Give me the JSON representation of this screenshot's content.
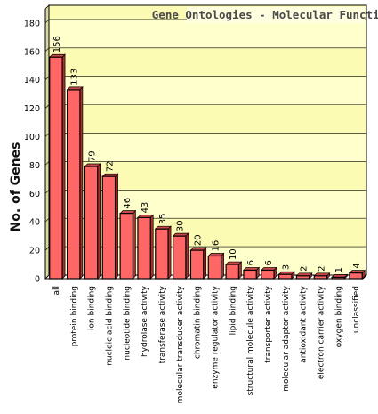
{
  "chart_data": {
    "type": "bar",
    "title": "Gene Ontologies - Molecular Functions",
    "ylabel": "No. of Genes",
    "xlabel": "",
    "ylim": [
      0,
      190
    ],
    "yticks": [
      0,
      20,
      40,
      60,
      80,
      100,
      120,
      140,
      160,
      180
    ],
    "grid": true,
    "legend": "none",
    "categories": [
      "all",
      "protein binding",
      "ion binding",
      "nucleic acid binding",
      "nucleotide binding",
      "hydrolase activity",
      "transferase activity",
      "molecular transducer activity",
      "chromatin binding",
      "enzyme regulator activity",
      "lipid binding",
      "structural molecule activity",
      "transporter activity",
      "molecular adaptor activity",
      "antioxidant activity",
      "electron carrier activity",
      "oxygen binding",
      "unclassified"
    ],
    "values": [
      156,
      133,
      79,
      72,
      46,
      43,
      35,
      30,
      20,
      16,
      10,
      6,
      6,
      3,
      2,
      2,
      1,
      4
    ],
    "colors": {
      "bar_fill": "#ff6666",
      "bar_edge": "#000000",
      "plot_bg_light": "#ffffcc",
      "plot_bg_band": "#fbfbb4",
      "grid": "#000000"
    }
  }
}
